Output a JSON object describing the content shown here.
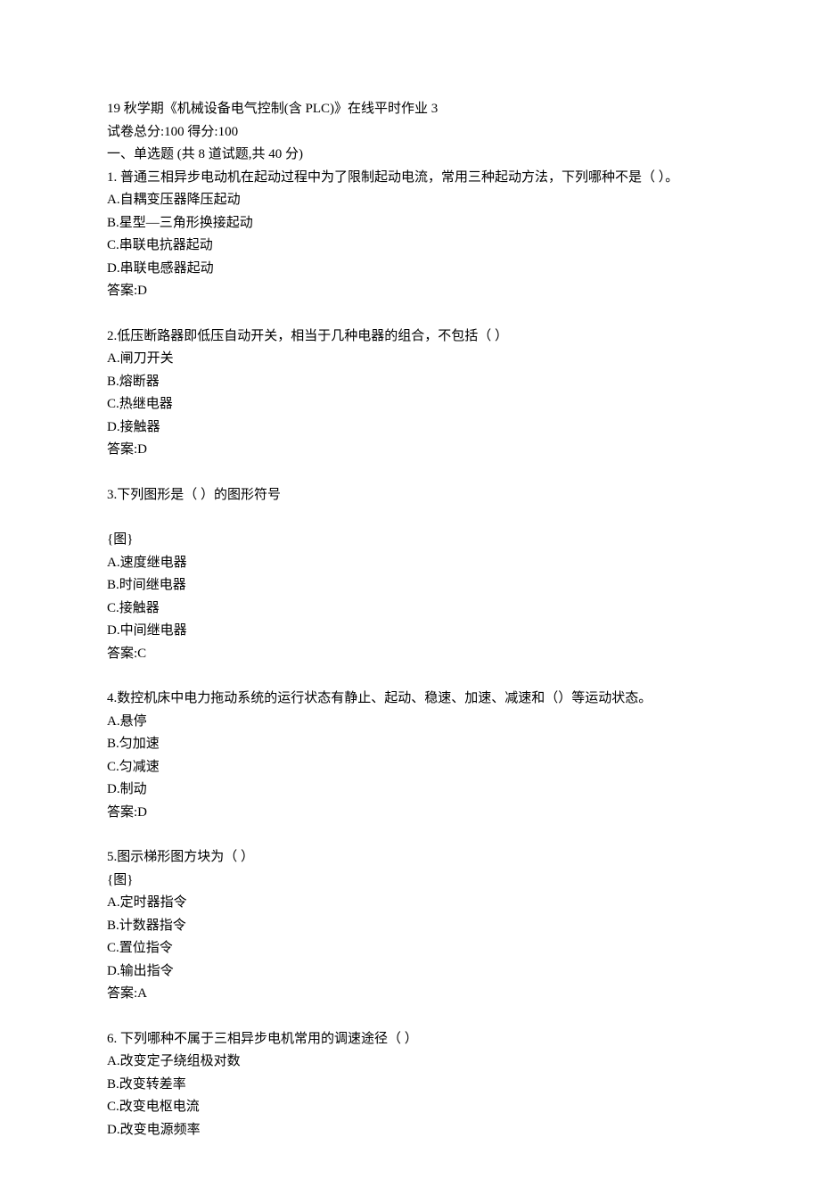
{
  "header": {
    "title": "19 秋学期《机械设备电气控制(含 PLC)》在线平时作业 3",
    "total_score": "试卷总分:100   得分:100",
    "section_title": "一、单选题 (共 8 道试题,共 40 分)"
  },
  "questions": [
    {
      "stem": "1. 普通三相异步电动机在起动过程中为了限制起动电流，常用三种起动方法，下列哪种不是（ ）。",
      "options": [
        "A.自耦变压器降压起动",
        "B.星型—三角形换接起动",
        "C.串联电抗器起动",
        "D.串联电感器起动"
      ],
      "answer": "答案:D"
    },
    {
      "stem": "2.低压断路器即低压自动开关，相当于几种电器的组合，不包括（ ）",
      "options": [
        "A.闸刀开关",
        "B.熔断器",
        "C.热继电器",
        "D.接触器"
      ],
      "answer": "答案:D"
    },
    {
      "stem": "3.下列图形是（   ）的图形符号",
      "placeholder": "{图}",
      "options": [
        "A.速度继电器",
        "B.时间继电器",
        "C.接触器",
        "D.中间继电器"
      ],
      "answer": "答案:C"
    },
    {
      "stem": "4.数控机床中电力拖动系统的运行状态有静止、起动、稳速、加速、减速和（）等运动状态。",
      "options": [
        "A.悬停",
        "B.匀加速",
        "C.匀减速",
        "D.制动"
      ],
      "answer": "答案:D"
    },
    {
      "stem": "5.图示梯形图方块为（   ）",
      "placeholder": "{图}",
      "options": [
        "A.定时器指令",
        "B.计数器指令",
        "C.置位指令",
        "D.输出指令"
      ],
      "answer": "答案:A"
    },
    {
      "stem": "6. 下列哪种不属于三相异步电机常用的调速途径（ ）",
      "options": [
        "A.改变定子绕组极对数",
        "B.改变转差率",
        "C.改变电枢电流",
        "D.改变电源频率"
      ]
    }
  ]
}
